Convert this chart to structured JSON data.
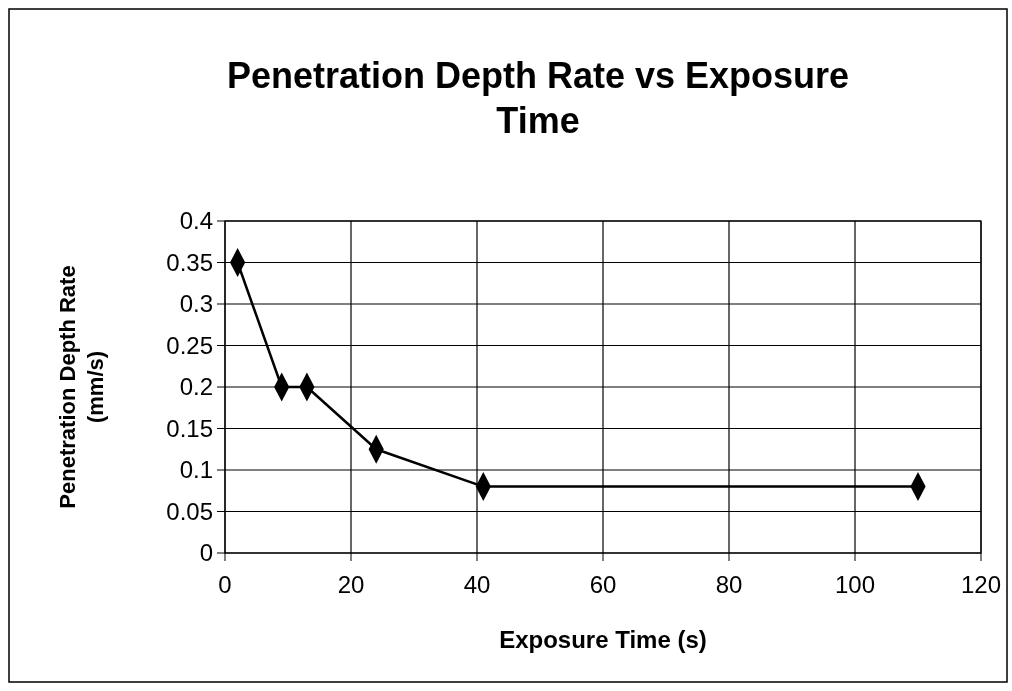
{
  "chart_data": {
    "type": "line",
    "title": "Penetration Depth Rate vs Exposure Time",
    "xlabel": "Exposure Time (s)",
    "ylabel": "Penetration Depth Rate (mm/s)",
    "x": [
      2,
      9,
      13,
      24,
      41,
      110
    ],
    "series": [
      {
        "color": "#000000",
        "values": [
          0.35,
          0.2,
          0.2,
          0.125,
          0.08,
          0.08
        ]
      }
    ],
    "xlim": [
      0,
      120
    ],
    "xticks": [
      0,
      20,
      40,
      60,
      80,
      100,
      120
    ],
    "ylim": [
      0,
      0.4
    ],
    "yticks": [
      0,
      0.05,
      0.1,
      {
        "value": 0.15,
        "label": "0.15"
      },
      0.2,
      0.25,
      0.3,
      0.35,
      0.4
    ],
    "grid": true,
    "marker": "diamond",
    "line_style": "solid"
  }
}
